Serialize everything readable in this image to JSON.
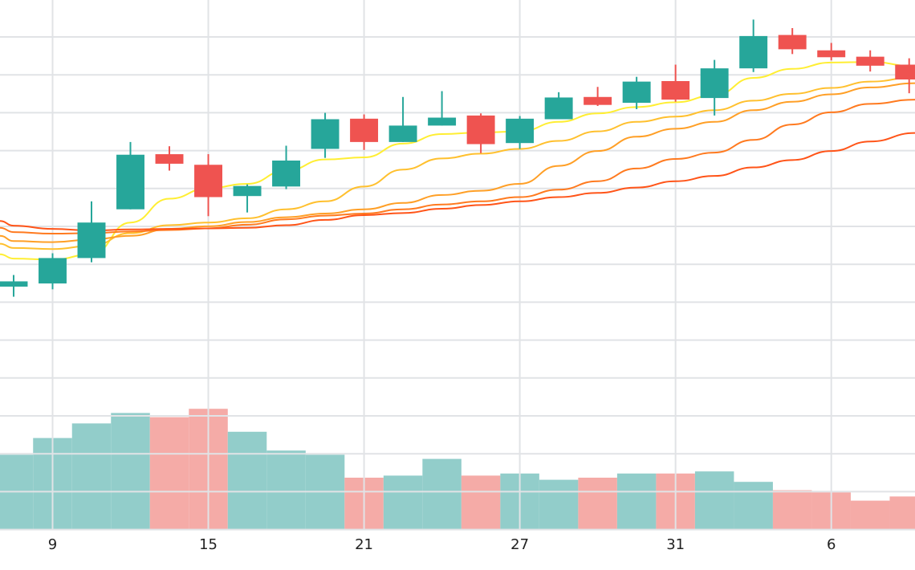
{
  "chart_data": {
    "type": "candlestick",
    "title": "",
    "xlabel": "",
    "ylabel": "",
    "x_ticks": [
      {
        "label": "9",
        "x": 2
      },
      {
        "label": "15",
        "x": 6
      },
      {
        "label": "21",
        "x": 10
      },
      {
        "label": "27",
        "x": 14
      },
      {
        "label": "31",
        "x": 18
      },
      {
        "label": "6",
        "x": 22
      }
    ],
    "ylim": [
      0,
      100
    ],
    "xlim": [
      0.65,
      24.15
    ],
    "volume_max": 100,
    "grid": true,
    "legend": "none",
    "colors": {
      "up": "#26a69a",
      "down": "#ef5350",
      "volume_up": "#92cdca",
      "volume_down": "#f5aba7",
      "ma": [
        "#ffee33",
        "#ffc02e",
        "#ff9f26",
        "#ff7a1f",
        "#ff5418"
      ]
    },
    "candles": [
      {
        "x": 1,
        "open": 45.9,
        "high": 48.1,
        "low": 44.0,
        "close": 46.9,
        "volume": 36
      },
      {
        "x": 2,
        "open": 46.5,
        "high": 52.2,
        "low": 45.4,
        "close": 51.3,
        "volume": 44
      },
      {
        "x": 3,
        "open": 51.3,
        "high": 62.0,
        "low": 50.5,
        "close": 58.0,
        "volume": 51
      },
      {
        "x": 4,
        "open": 60.5,
        "high": 73.2,
        "low": 60.5,
        "close": 70.8,
        "volume": 56
      },
      {
        "x": 5,
        "open": 70.9,
        "high": 72.4,
        "low": 67.8,
        "close": 69.1,
        "volume": 54
      },
      {
        "x": 6,
        "open": 68.9,
        "high": 70.9,
        "low": 59.2,
        "close": 62.8,
        "volume": 58
      },
      {
        "x": 7,
        "open": 63.0,
        "high": 65.2,
        "low": 59.9,
        "close": 64.9,
        "volume": 47
      },
      {
        "x": 8,
        "open": 64.8,
        "high": 72.5,
        "low": 64.3,
        "close": 69.7,
        "volume": 38
      },
      {
        "x": 9,
        "open": 71.9,
        "high": 78.7,
        "low": 70.2,
        "close": 77.5,
        "volume": 36
      },
      {
        "x": 10,
        "open": 77.6,
        "high": 78.4,
        "low": 71.7,
        "close": 73.2,
        "volume": 25
      },
      {
        "x": 11,
        "open": 73.2,
        "high": 81.7,
        "low": 73.2,
        "close": 76.3,
        "volume": 26
      },
      {
        "x": 12,
        "open": 76.3,
        "high": 82.8,
        "low": 76.3,
        "close": 77.8,
        "volume": 34
      },
      {
        "x": 13,
        "open": 78.2,
        "high": 78.6,
        "low": 71.1,
        "close": 72.8,
        "volume": 26
      },
      {
        "x": 14,
        "open": 73.0,
        "high": 78.1,
        "low": 71.9,
        "close": 77.6,
        "volume": 27
      },
      {
        "x": 15,
        "open": 77.5,
        "high": 82.6,
        "low": 77.5,
        "close": 81.6,
        "volume": 24
      },
      {
        "x": 16,
        "open": 81.7,
        "high": 83.6,
        "low": 80.0,
        "close": 80.2,
        "volume": 25
      },
      {
        "x": 17,
        "open": 80.6,
        "high": 85.5,
        "low": 79.4,
        "close": 84.6,
        "volume": 27
      },
      {
        "x": 18,
        "open": 84.7,
        "high": 87.8,
        "low": 80.8,
        "close": 81.2,
        "volume": 27
      },
      {
        "x": 19,
        "open": 81.5,
        "high": 88.7,
        "low": 78.2,
        "close": 87.1,
        "volume": 28
      },
      {
        "x": 20,
        "open": 87.1,
        "high": 96.3,
        "low": 86.4,
        "close": 93.2,
        "volume": 23
      },
      {
        "x": 21,
        "open": 93.4,
        "high": 94.7,
        "low": 89.8,
        "close": 90.7,
        "volume": 19
      },
      {
        "x": 22,
        "open": 90.5,
        "high": 91.9,
        "low": 88.6,
        "close": 89.2,
        "volume": 18
      },
      {
        "x": 23,
        "open": 89.3,
        "high": 90.5,
        "low": 86.5,
        "close": 87.6,
        "volume": 14
      },
      {
        "x": 24,
        "open": 87.8,
        "high": 89.0,
        "low": 82.4,
        "close": 85.0,
        "volume": 16
      }
    ],
    "series": [
      {
        "values": [
          [
            0.65,
            52.0
          ],
          [
            1,
            51.2
          ],
          [
            2,
            51.0
          ],
          [
            3,
            52.0
          ],
          [
            4,
            58.0
          ],
          [
            5,
            62.5
          ],
          [
            6,
            64.5
          ],
          [
            7,
            65.3
          ],
          [
            8,
            67.8
          ],
          [
            9,
            69.9
          ],
          [
            10,
            70.3
          ],
          [
            11,
            72.9
          ],
          [
            12,
            74.7
          ],
          [
            13,
            75.0
          ],
          [
            14,
            75.2
          ],
          [
            15,
            77.0
          ],
          [
            16,
            78.6
          ],
          [
            17,
            79.8
          ],
          [
            18,
            80.7
          ],
          [
            19,
            82.0
          ],
          [
            20,
            85.3
          ],
          [
            21,
            87.0
          ],
          [
            22,
            88.2
          ],
          [
            23,
            88.3
          ],
          [
            24.15,
            87.5
          ]
        ]
      },
      {
        "values": [
          [
            0.65,
            54.0
          ],
          [
            1,
            53.2
          ],
          [
            2,
            53.0
          ],
          [
            3,
            53.6
          ],
          [
            4,
            56.0
          ],
          [
            5,
            57.5
          ],
          [
            6,
            58.0
          ],
          [
            7,
            58.8
          ],
          [
            8,
            60.5
          ],
          [
            9,
            62.0
          ],
          [
            10,
            64.8
          ],
          [
            11,
            68.0
          ],
          [
            12,
            70.1
          ],
          [
            13,
            71.0
          ],
          [
            14,
            71.9
          ],
          [
            15,
            73.4
          ],
          [
            16,
            75.2
          ],
          [
            17,
            77.0
          ],
          [
            18,
            78.0
          ],
          [
            19,
            79.2
          ],
          [
            20,
            81.0
          ],
          [
            21,
            82.3
          ],
          [
            22,
            83.4
          ],
          [
            23,
            84.6
          ],
          [
            24.15,
            85.4
          ]
        ]
      },
      {
        "values": [
          [
            0.65,
            55.5
          ],
          [
            1,
            54.5
          ],
          [
            2,
            54.3
          ],
          [
            3,
            54.8
          ],
          [
            4,
            55.5
          ],
          [
            5,
            56.8
          ],
          [
            6,
            57.3
          ],
          [
            7,
            58.1
          ],
          [
            8,
            59.0
          ],
          [
            9,
            59.7
          ],
          [
            10,
            60.5
          ],
          [
            11,
            61.7
          ],
          [
            12,
            63.2
          ],
          [
            13,
            64.0
          ],
          [
            14,
            65.3
          ],
          [
            15,
            68.7
          ],
          [
            16,
            71.5
          ],
          [
            17,
            74.2
          ],
          [
            18,
            75.7
          ],
          [
            19,
            77.0
          ],
          [
            20,
            79.2
          ],
          [
            21,
            80.8
          ],
          [
            22,
            82.2
          ],
          [
            23,
            83.5
          ],
          [
            24.15,
            84.3
          ]
        ]
      },
      {
        "values": [
          [
            0.65,
            57.0
          ],
          [
            1,
            56.2
          ],
          [
            2,
            55.9
          ],
          [
            3,
            56.0
          ],
          [
            4,
            56.3
          ],
          [
            5,
            56.6
          ],
          [
            6,
            56.9
          ],
          [
            7,
            57.6
          ],
          [
            8,
            58.6
          ],
          [
            9,
            59.3
          ],
          [
            10,
            59.7
          ],
          [
            11,
            60.5
          ],
          [
            12,
            61.4
          ],
          [
            13,
            62.0
          ],
          [
            14,
            62.8
          ],
          [
            15,
            64.2
          ],
          [
            16,
            65.8
          ],
          [
            17,
            68.2
          ],
          [
            18,
            70.0
          ],
          [
            19,
            71.2
          ],
          [
            20,
            73.6
          ],
          [
            21,
            76.5
          ],
          [
            22,
            78.8
          ],
          [
            23,
            80.4
          ],
          [
            24.15,
            81.2
          ]
        ]
      },
      {
        "values": [
          [
            0.65,
            58.3
          ],
          [
            1,
            57.4
          ],
          [
            2,
            56.8
          ],
          [
            3,
            56.5
          ],
          [
            4,
            56.7
          ],
          [
            5,
            56.8
          ],
          [
            6,
            56.9
          ],
          [
            7,
            57.0
          ],
          [
            8,
            57.5
          ],
          [
            9,
            58.5
          ],
          [
            10,
            59.4
          ],
          [
            11,
            59.8
          ],
          [
            12,
            60.6
          ],
          [
            13,
            61.3
          ],
          [
            14,
            62.0
          ],
          [
            15,
            62.8
          ],
          [
            16,
            63.6
          ],
          [
            17,
            64.6
          ],
          [
            18,
            65.8
          ],
          [
            19,
            66.8
          ],
          [
            20,
            68.4
          ],
          [
            21,
            69.8
          ],
          [
            22,
            71.5
          ],
          [
            23,
            73.3
          ],
          [
            24.15,
            74.9
          ]
        ]
      }
    ]
  }
}
